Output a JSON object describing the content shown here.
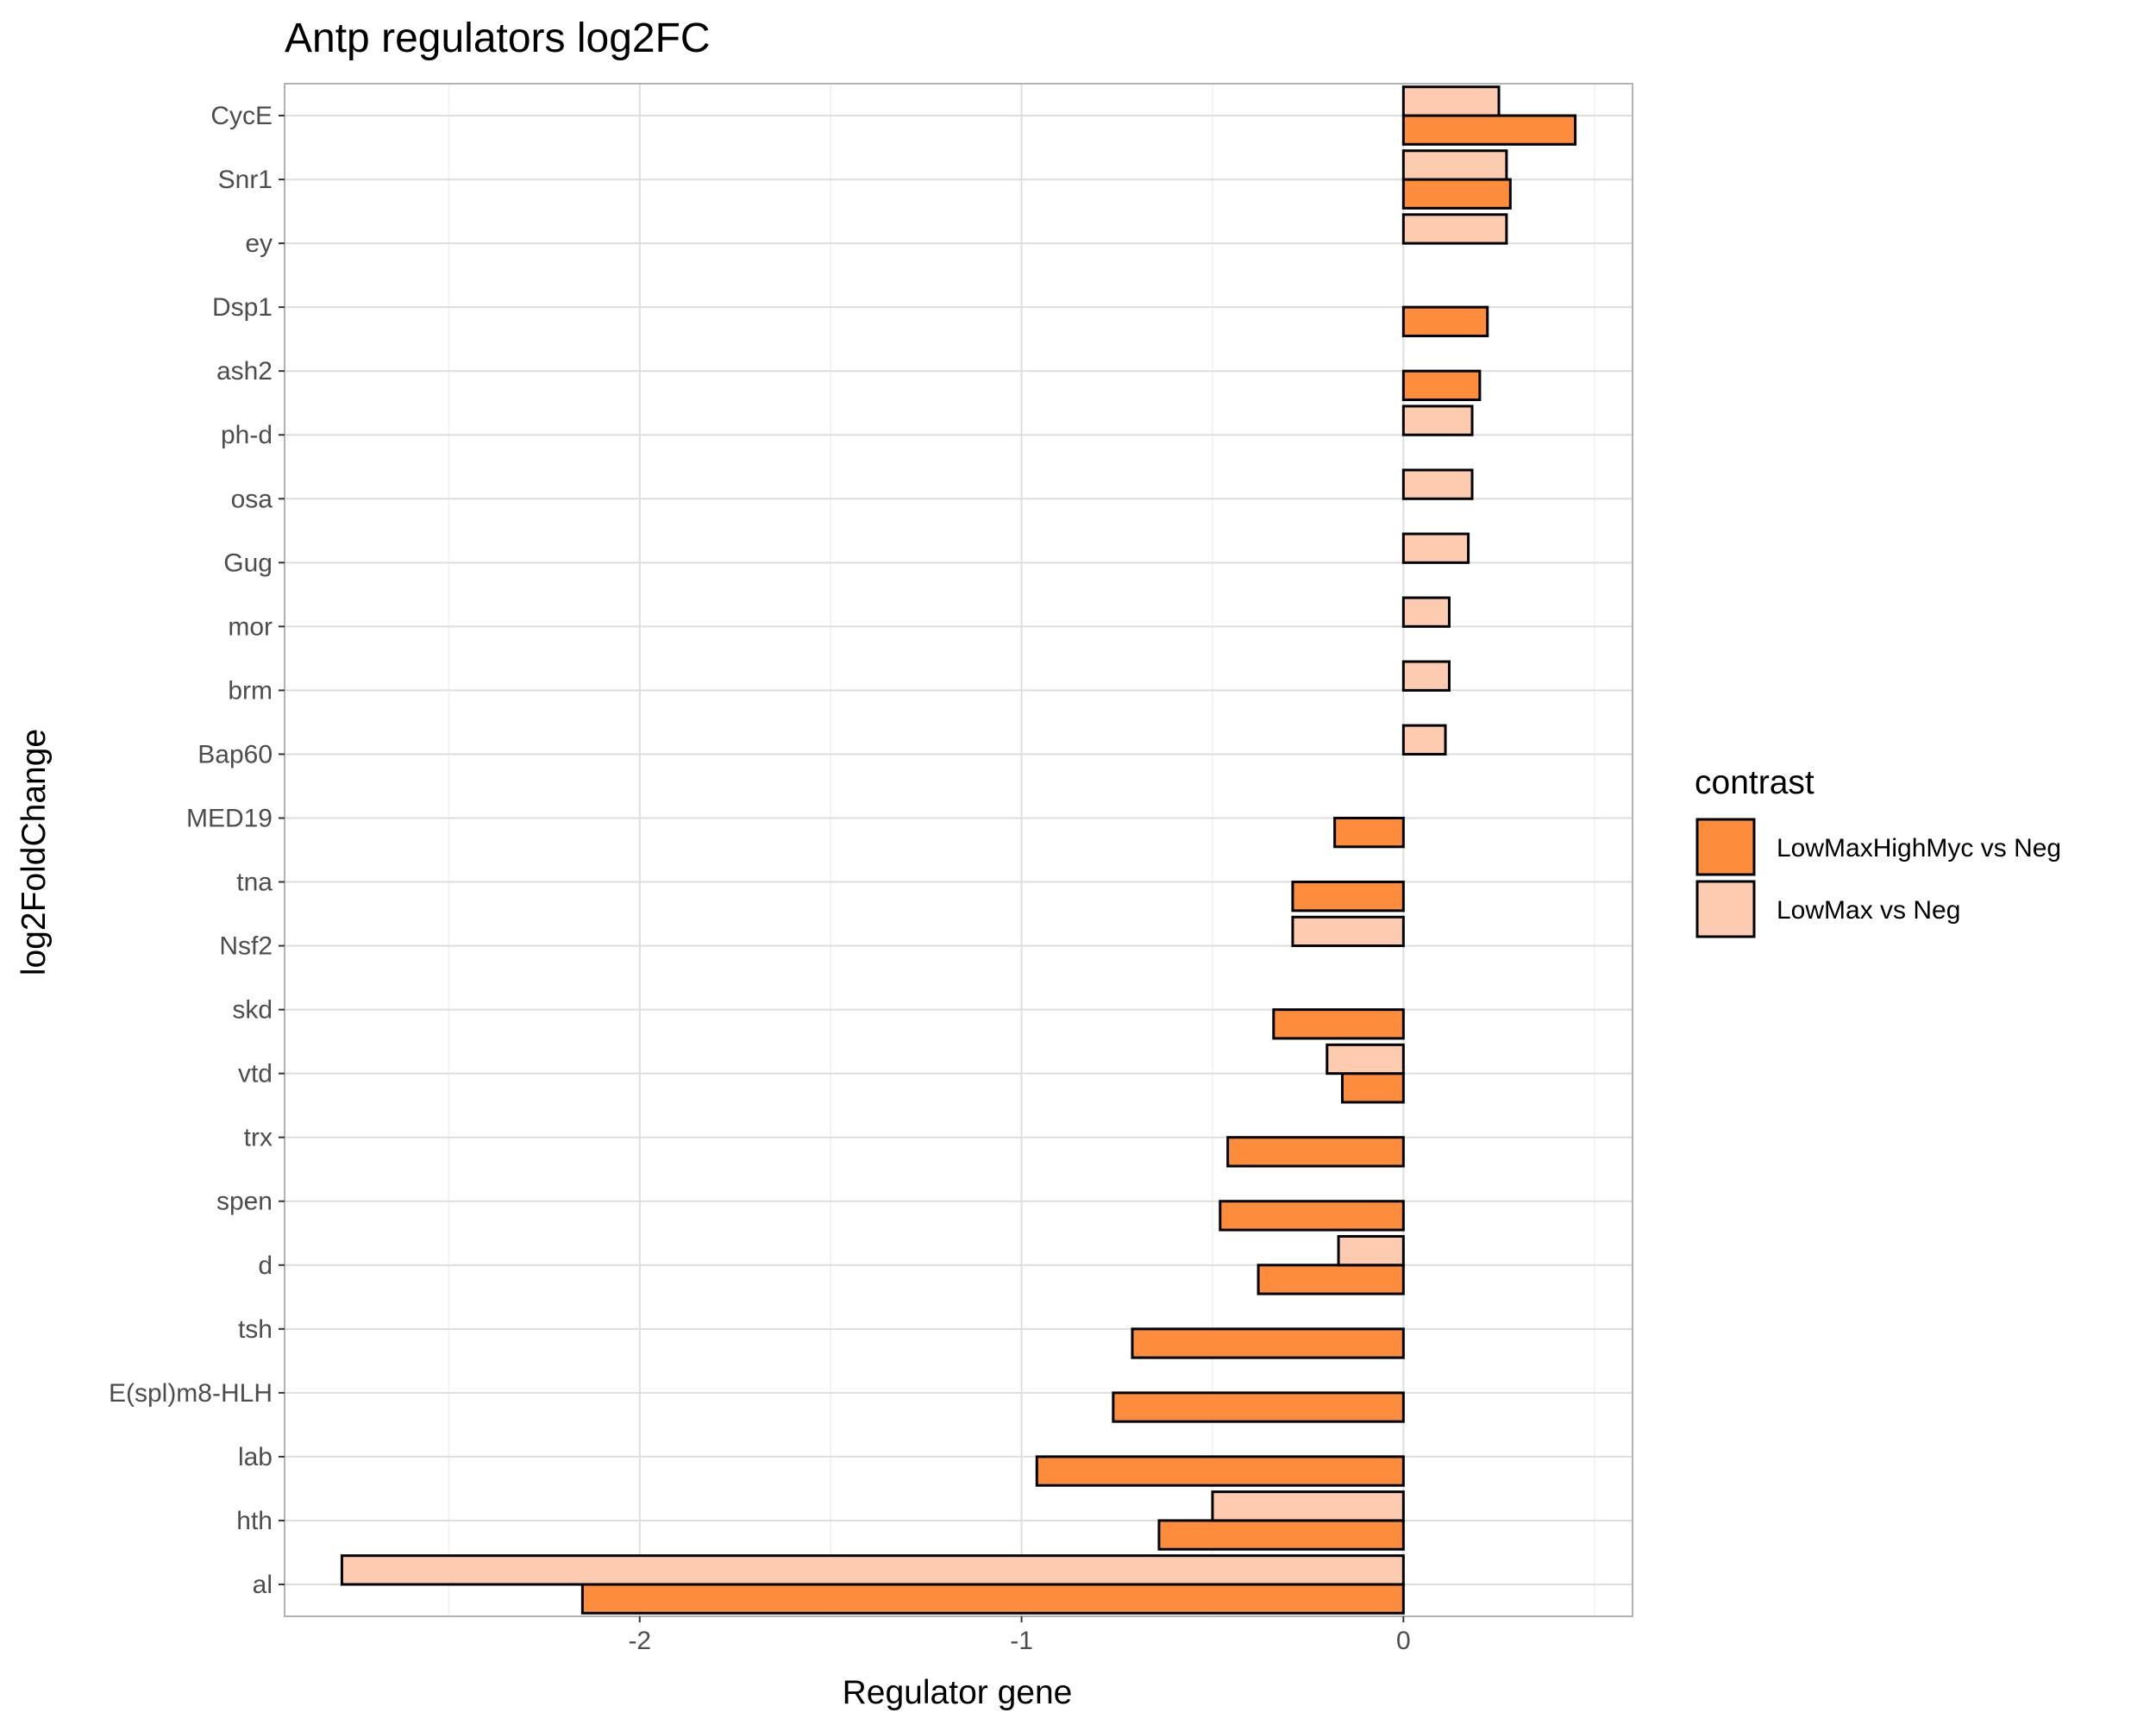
{
  "chart_data": {
    "type": "bar",
    "orientation": "horizontal",
    "title": "Antp regulators log2FC",
    "xlabel": "Regulator gene",
    "ylabel": "log2FoldChange",
    "xlim": [
      -2.93,
      0.6
    ],
    "x_ticks": [
      -2,
      -1,
      0
    ],
    "x_tick_labels": [
      "-2",
      "-1",
      "0"
    ],
    "grid": true,
    "legend_position": "right",
    "legend_title": "contrast",
    "categories": [
      "CycE",
      "Snr1",
      "ey",
      "Dsp1",
      "ash2",
      "ph-d",
      "osa",
      "Gug",
      "mor",
      "brm",
      "Bap60",
      "MED19",
      "tna",
      "Nsf2",
      "skd",
      "vtd",
      "trx",
      "spen",
      "d",
      "tsh",
      "E(spl)m8-HLH",
      "lab",
      "hth",
      "al"
    ],
    "series": [
      {
        "name": "LowMaxHighMyc vs Neg",
        "color": "#fd8d3c",
        "values": [
          0.45,
          0.28,
          0,
          0.22,
          0.2,
          0,
          0,
          0,
          0,
          0,
          0,
          -0.18,
          -0.29,
          0,
          -0.34,
          -0.16,
          -0.46,
          -0.48,
          -0.38,
          -0.71,
          -0.76,
          -0.96,
          -0.64,
          -2.15
        ]
      },
      {
        "name": "LowMax vs Neg",
        "color": "#fdcbb0",
        "values": [
          0.25,
          0.27,
          0.27,
          0,
          0,
          0.18,
          0.18,
          0.17,
          0.12,
          0.12,
          0.11,
          0,
          0,
          -0.29,
          0,
          -0.2,
          0,
          0,
          -0.17,
          0,
          0,
          0,
          -0.5,
          -2.78
        ]
      }
    ]
  }
}
